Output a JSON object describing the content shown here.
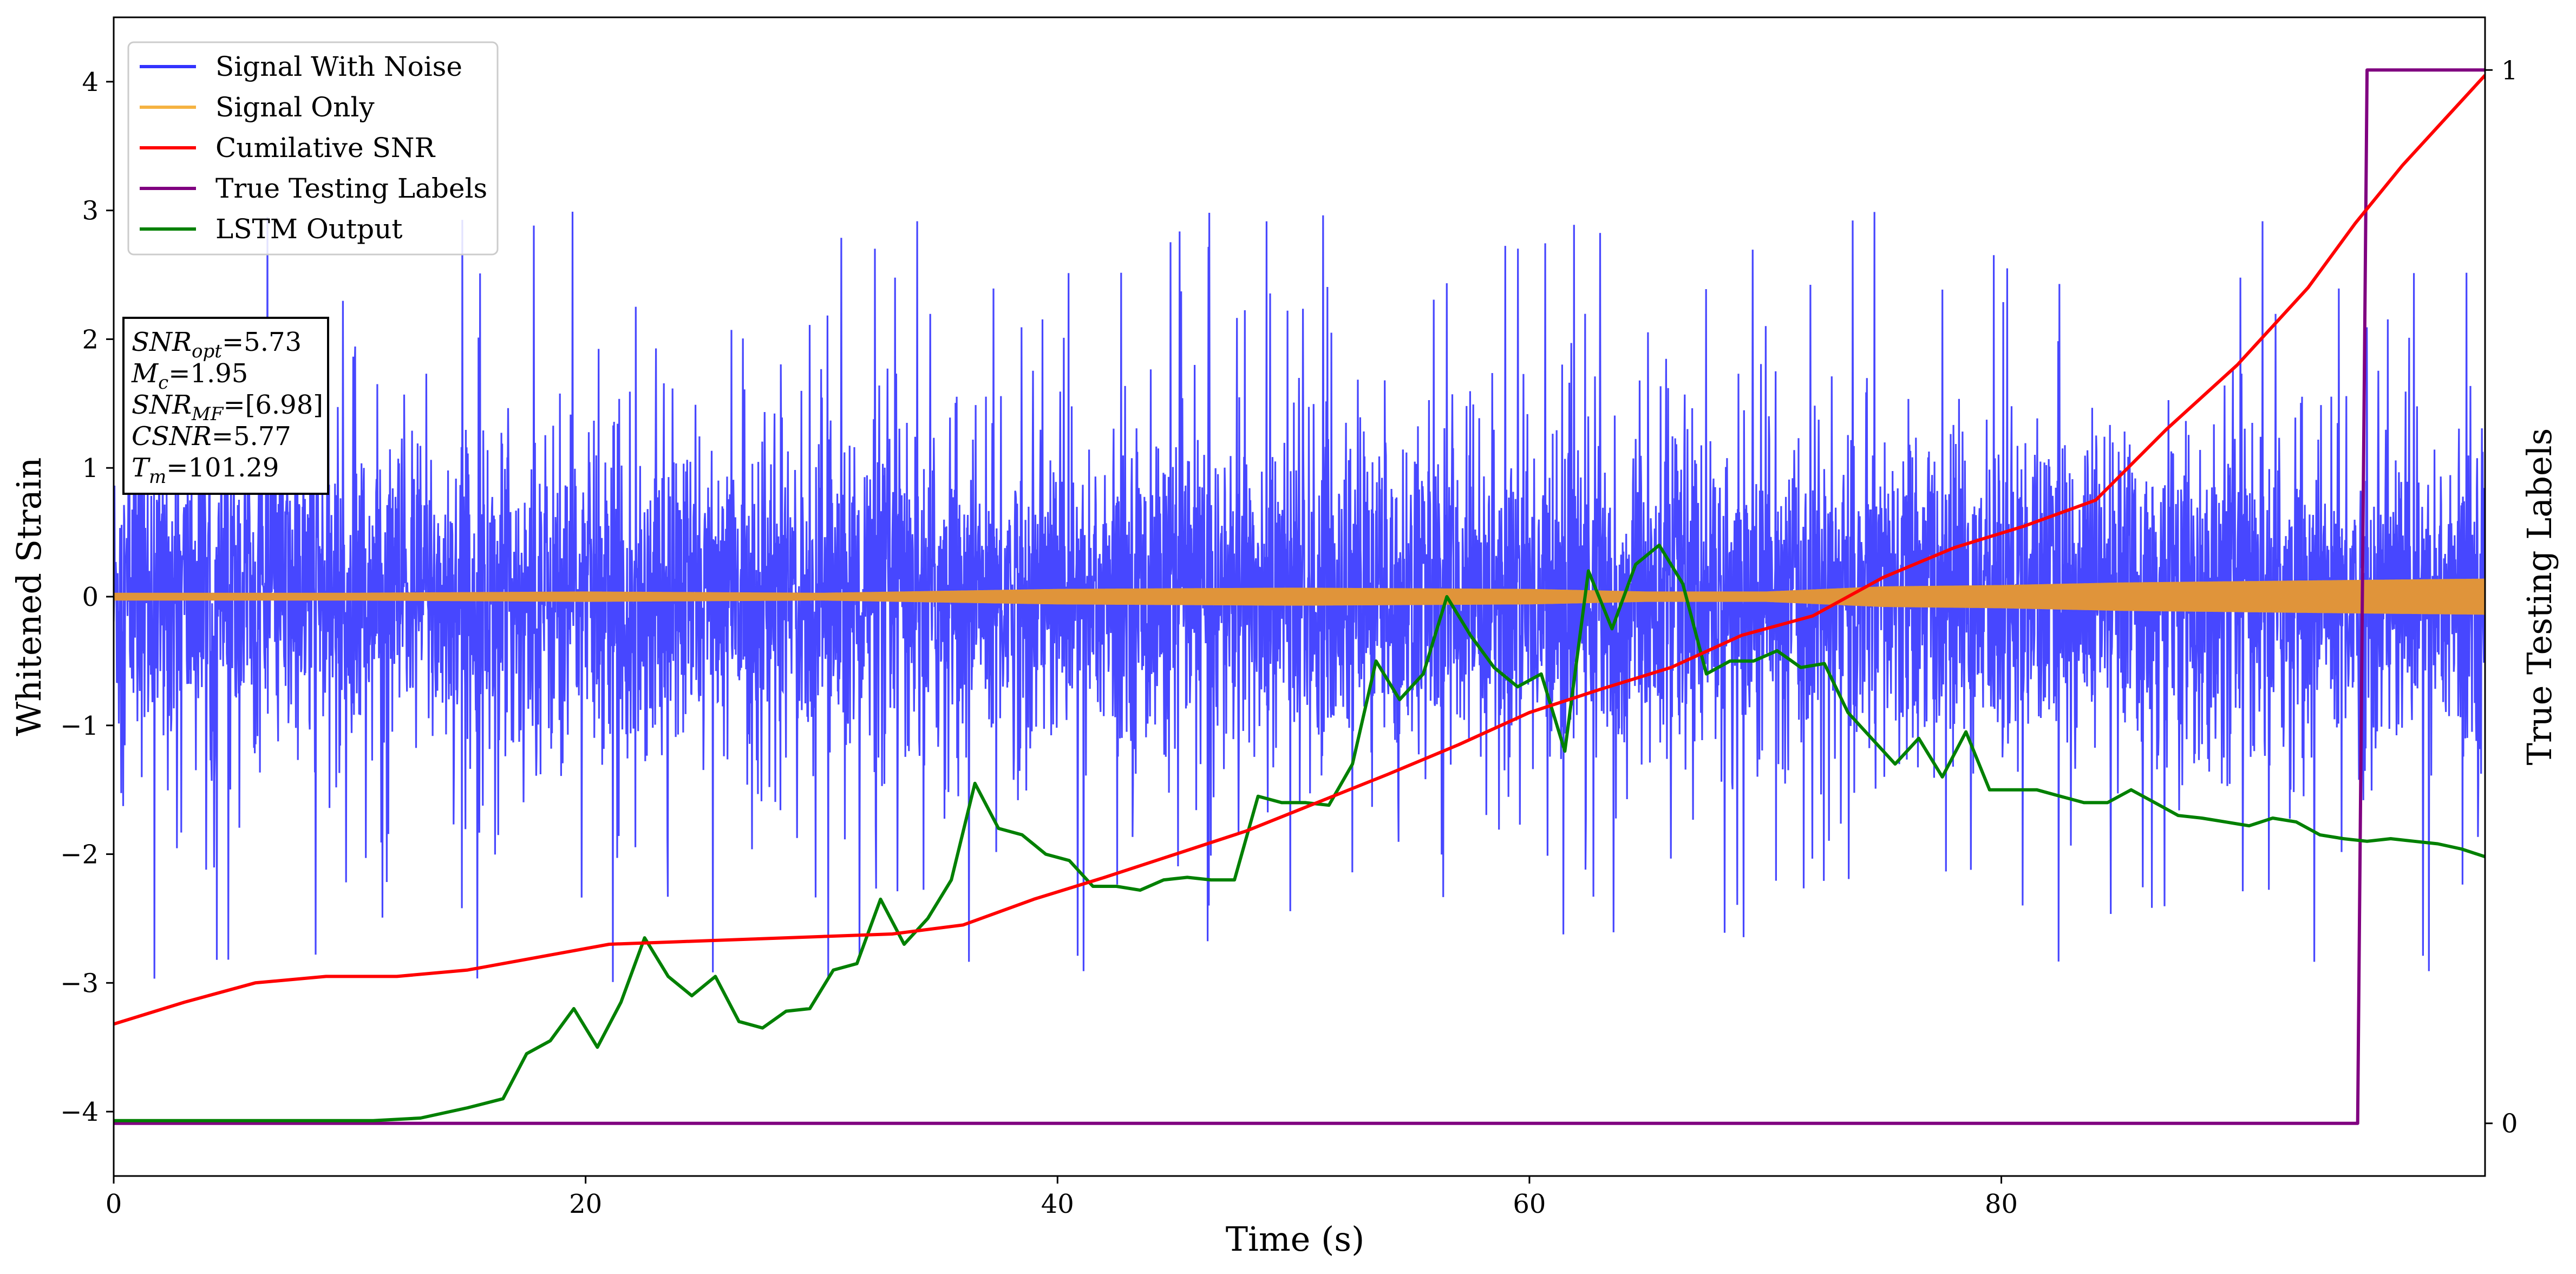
{
  "chart_data": {
    "type": "line",
    "xlabel": "Time (s)",
    "ylabel": "Whitened Strain",
    "ylabel_right": "True Testing Labels",
    "xlim": [
      0,
      100.5
    ],
    "ylim": [
      -4.5,
      4.5
    ],
    "ylim_right": [
      -0.05,
      1.05
    ],
    "xticks": [
      0,
      20,
      40,
      60,
      80
    ],
    "yticks": [
      -4,
      -3,
      -2,
      -1,
      0,
      1,
      2,
      3,
      4
    ],
    "yticks_right": [
      0,
      1
    ],
    "grid": false,
    "legend_position": "top-left",
    "legend": [
      {
        "label": "Signal With Noise",
        "color": "#3333ff"
      },
      {
        "label": "Signal Only",
        "color": "#f5b342"
      },
      {
        "label": "Cumilative SNR",
        "color": "#ff0000"
      },
      {
        "label": "True Testing Labels",
        "color": "#800080"
      },
      {
        "label": "LSTM Output",
        "color": "#008000"
      }
    ],
    "annotation": [
      {
        "base": "SNR",
        "sub": "opt",
        "value": "=5.73"
      },
      {
        "base": "M",
        "sub": "c",
        "value": "=1.95"
      },
      {
        "base": "SNR",
        "sub": "MF",
        "value": "=[6.98]"
      },
      {
        "base": "CSNR",
        "sub": "",
        "value": "=5.77"
      },
      {
        "base": "T",
        "sub": "m",
        "value": "=101.29"
      }
    ],
    "series": [
      {
        "name": "Signal With Noise",
        "axis": "left",
        "description": "dense noise band",
        "noise_core": [
          -1.0,
          1.0
        ],
        "noise_spikes": [
          -3.05,
          3.25
        ]
      },
      {
        "name": "Signal Only",
        "axis": "left",
        "x": [
          0,
          10,
          20,
          30,
          40,
          50,
          60,
          65,
          70,
          75,
          80,
          85,
          90,
          95,
          100.5
        ],
        "amplitude": [
          0.03,
          0.03,
          0.04,
          0.03,
          0.06,
          0.07,
          0.06,
          0.04,
          0.04,
          0.08,
          0.09,
          0.11,
          0.12,
          0.13,
          0.14
        ]
      },
      {
        "name": "Cumilative SNR",
        "axis": "left",
        "x": [
          0,
          3,
          6,
          9,
          12,
          15,
          18,
          21,
          24,
          27,
          30,
          33,
          36,
          39,
          42,
          45,
          48,
          51,
          54,
          57,
          60,
          63,
          66,
          69,
          72,
          75,
          78,
          81,
          84,
          87,
          90,
          93,
          95,
          97,
          99,
          100.5
        ],
        "y": [
          -3.32,
          -3.15,
          -3.0,
          -2.95,
          -2.95,
          -2.9,
          -2.8,
          -2.7,
          -2.68,
          -2.66,
          -2.64,
          -2.62,
          -2.55,
          -2.35,
          -2.18,
          -2.0,
          -1.82,
          -1.6,
          -1.38,
          -1.15,
          -0.9,
          -0.72,
          -0.55,
          -0.3,
          -0.15,
          0.15,
          0.38,
          0.55,
          0.75,
          1.3,
          1.8,
          2.4,
          2.9,
          3.35,
          3.75,
          4.05
        ]
      },
      {
        "name": "True Testing Labels",
        "axis": "right",
        "x": [
          0,
          95.1,
          95.5,
          100.5
        ],
        "y": [
          0,
          0,
          1,
          1
        ]
      },
      {
        "name": "LSTM Output",
        "axis": "left",
        "x": [
          0,
          11,
          13,
          15,
          16.5,
          17.5,
          18.5,
          19.5,
          20.5,
          21.5,
          22.5,
          23.5,
          24.5,
          25.5,
          26.5,
          27.5,
          28.5,
          29.5,
          30.5,
          31.5,
          32.5,
          33.5,
          34.5,
          35.5,
          36.5,
          37.5,
          38.5,
          39.5,
          40.5,
          41.5,
          42.5,
          43.5,
          44.5,
          45.5,
          46.5,
          47.5,
          48.5,
          49.5,
          50.5,
          51.5,
          52.5,
          53.5,
          54.5,
          55.5,
          56.5,
          57.5,
          58.5,
          59.5,
          60.5,
          61.5,
          62.5,
          63.5,
          64.5,
          65.5,
          66.5,
          67.5,
          68.5,
          69.5,
          70.5,
          71.5,
          72.5,
          73.5,
          74.5,
          75.5,
          76.5,
          77.5,
          78.5,
          79.5,
          80.5,
          81.5,
          82.5,
          83.5,
          84.5,
          85.5,
          86.5,
          87.5,
          88.5,
          89.5,
          90.5,
          91.5,
          92.5,
          93.5,
          94.5,
          95.5,
          96.5,
          97.5,
          98.5,
          99.5,
          100.5
        ],
        "y": [
          -4.07,
          -4.07,
          -4.05,
          -3.97,
          -3.9,
          -3.55,
          -3.45,
          -3.2,
          -3.5,
          -3.15,
          -2.65,
          -2.95,
          -3.1,
          -2.95,
          -3.3,
          -3.35,
          -3.22,
          -3.2,
          -2.9,
          -2.85,
          -2.35,
          -2.7,
          -2.5,
          -2.2,
          -1.45,
          -1.8,
          -1.85,
          -2.0,
          -2.05,
          -2.25,
          -2.25,
          -2.28,
          -2.2,
          -2.18,
          -2.2,
          -2.2,
          -1.55,
          -1.6,
          -1.6,
          -1.62,
          -1.3,
          -0.5,
          -0.8,
          -0.6,
          0.0,
          -0.3,
          -0.55,
          -0.7,
          -0.6,
          -1.2,
          0.2,
          -0.25,
          0.25,
          0.4,
          0.1,
          -0.6,
          -0.5,
          -0.5,
          -0.42,
          -0.55,
          -0.52,
          -0.9,
          -1.1,
          -1.3,
          -1.1,
          -1.4,
          -1.05,
          -1.5,
          -1.5,
          -1.5,
          -1.55,
          -1.6,
          -1.6,
          -1.5,
          -1.6,
          -1.7,
          -1.72,
          -1.75,
          -1.78,
          -1.72,
          -1.75,
          -1.85,
          -1.88,
          -1.9,
          -1.88,
          -1.9,
          -1.92,
          -1.96,
          -2.02
        ]
      }
    ]
  }
}
